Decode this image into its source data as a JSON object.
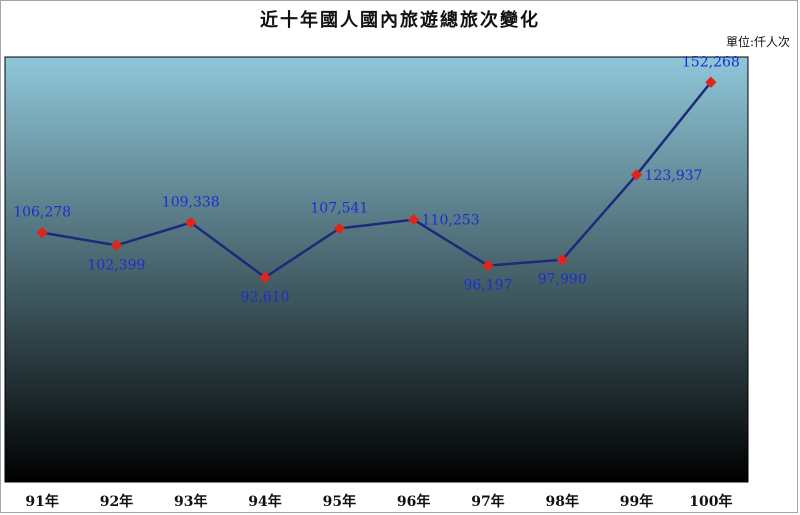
{
  "chart_data": {
    "type": "line",
    "title": "近十年國人國內旅遊總旅次變化",
    "unit_note": "單位:仟人次",
    "categories": [
      "91年",
      "92年",
      "93年",
      "94年",
      "95年",
      "96年",
      "97年",
      "98年",
      "99年",
      "100年"
    ],
    "series": [
      {
        "values": [
          106278,
          102399,
          109338,
          92610,
          107541,
          110253,
          96197,
          97990,
          123937,
          152268
        ],
        "labels": [
          "106,278",
          "102,399",
          "109,338",
          "92,610",
          "107,541",
          "110,253",
          "96,197",
          "97,990",
          "123,937",
          "152,268"
        ]
      }
    ],
    "ylim": [
      30000,
      160000
    ],
    "line_color": "#1c2a7a",
    "marker_color": "#e0261b",
    "label_color": "#1a2fd1",
    "plot_gradient": [
      "#8fc7d9",
      "#000000"
    ],
    "grid": false,
    "legend": "none"
  }
}
